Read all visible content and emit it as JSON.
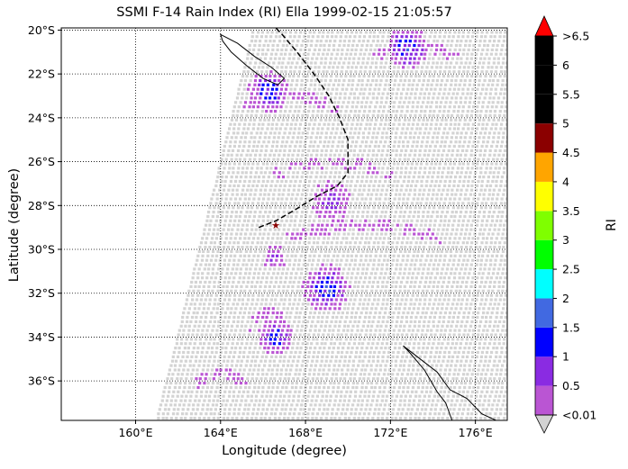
{
  "title": "SSMI F-14 Rain Index (RI) Ella 1999-02-15 21:05:57",
  "xlabel": "Longitude (degree)",
  "ylabel": "Latitude (degree)",
  "colorbar_label": "RI",
  "chart_data": {
    "type": "heatmap",
    "map_extent": {
      "lon": [
        156.5,
        177.5
      ],
      "lat": [
        -37.8,
        -19.9
      ]
    },
    "x_ticks": [
      {
        "value": 160,
        "label": "160°E"
      },
      {
        "value": 164,
        "label": "164°E"
      },
      {
        "value": 168,
        "label": "168°E"
      },
      {
        "value": 172,
        "label": "172°E"
      },
      {
        "value": 176,
        "label": "176°E"
      }
    ],
    "y_ticks": [
      {
        "value": -20,
        "label": "20°S"
      },
      {
        "value": -22,
        "label": "22°S"
      },
      {
        "value": -24,
        "label": "24°S"
      },
      {
        "value": -26,
        "label": "26°S"
      },
      {
        "value": -28,
        "label": "28°S"
      },
      {
        "value": -30,
        "label": "30°S"
      },
      {
        "value": -32,
        "label": "32°S"
      },
      {
        "value": -34,
        "label": "34°S"
      },
      {
        "value": -36,
        "label": "36°S"
      }
    ],
    "grid": true,
    "colorbar": {
      "labels": [
        "<0.01",
        "0.5",
        "1",
        "1.5",
        "2",
        "2.5",
        "3",
        "3.5",
        "4",
        "4.5",
        "5",
        "5.5",
        "6",
        ">6.5"
      ],
      "under_color": "#d3d3d3",
      "over_color": "#ff0000",
      "colors": [
        "#ba55d3",
        "#8a2be2",
        "#0000ff",
        "#4169e1",
        "#00ffff",
        "#00ff00",
        "#7fff00",
        "#ffff00",
        "#ffa500",
        "#8b0000",
        "#000000",
        "#000000",
        "#000000"
      ]
    },
    "storm_center": {
      "lon": 166.6,
      "lat": -28.9
    },
    "storm_track": [
      [
        165.8,
        -29.0
      ],
      [
        166.6,
        -28.7
      ],
      [
        167.5,
        -28.2
      ],
      [
        168.5,
        -27.6
      ],
      [
        169.5,
        -27.1
      ],
      [
        170.0,
        -26.5
      ],
      [
        170.0,
        -25.0
      ],
      [
        169.6,
        -24.0
      ],
      [
        169.1,
        -23.0
      ],
      [
        168.4,
        -22.0
      ],
      [
        167.6,
        -21.0
      ],
      [
        166.9,
        -20.2
      ],
      [
        166.6,
        -19.9
      ]
    ],
    "rain_clusters": [
      {
        "lon": 169.0,
        "lat": -31.8,
        "peak": 2.0,
        "spread": 0.9
      },
      {
        "lon": 166.6,
        "lat": -34.0,
        "peak": 1.8,
        "spread": 0.7
      },
      {
        "lon": 172.8,
        "lat": -20.8,
        "peak": 2.0,
        "spread": 0.8
      },
      {
        "lon": 166.3,
        "lat": -22.8,
        "peak": 1.8,
        "spread": 0.8
      },
      {
        "lon": 169.2,
        "lat": -27.8,
        "peak": 1.2,
        "spread": 0.9
      },
      {
        "lon": 166.5,
        "lat": -30.4,
        "peak": 1.1,
        "spread": 0.6
      }
    ]
  }
}
